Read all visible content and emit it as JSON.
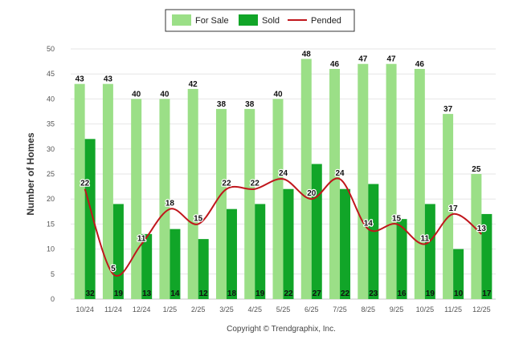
{
  "chart_data": {
    "type": "bar",
    "title": "",
    "xlabel": "",
    "ylabel": "Number of Homes",
    "ylim": [
      0,
      50
    ],
    "yticks": [
      0,
      5,
      10,
      15,
      20,
      25,
      30,
      35,
      40,
      45,
      50
    ],
    "grid": true,
    "legend_position": "top-center",
    "categories": [
      "10/24",
      "11/24",
      "12/24",
      "1/25",
      "2/25",
      "3/25",
      "4/25",
      "5/25",
      "6/25",
      "7/25",
      "8/25",
      "9/25",
      "10/25",
      "11/25",
      "12/25"
    ],
    "series": [
      {
        "name": "For Sale",
        "kind": "bar",
        "color": "#9bdf87",
        "values": [
          43,
          43,
          40,
          40,
          42,
          38,
          38,
          40,
          48,
          46,
          47,
          47,
          46,
          37,
          25
        ]
      },
      {
        "name": "Sold",
        "kind": "bar",
        "color": "#11a528",
        "values": [
          32,
          19,
          13,
          14,
          12,
          18,
          19,
          22,
          27,
          22,
          23,
          16,
          19,
          10,
          17
        ]
      },
      {
        "name": "Pended",
        "kind": "line",
        "color": "#c0161c",
        "values": [
          22,
          5,
          11,
          18,
          15,
          22,
          22,
          24,
          20,
          24,
          14,
          15,
          11,
          17,
          13
        ]
      }
    ],
    "footer": "Copyright © Trendgraphix, Inc."
  }
}
